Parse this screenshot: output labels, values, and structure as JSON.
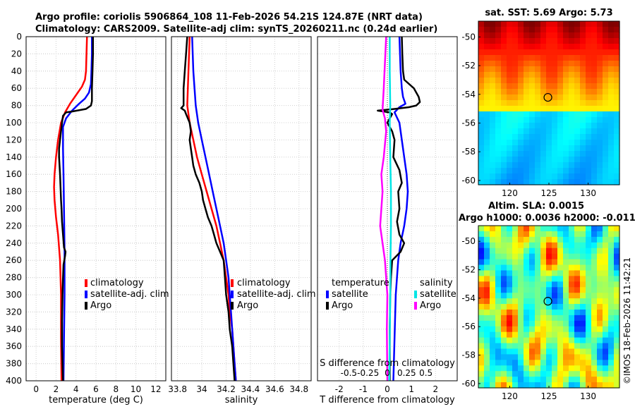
{
  "header": {
    "title_line1": "Argo profile: coriolis 5906864_108 11-Feb-2026 54.21S 124.87E (NRT data)",
    "title_line2": "Climatology: CARS2009. Satellite-adj clim: synTS_20260211.nc (0.24d earlier)"
  },
  "footer": {
    "credit": "©IMOS 18-Feb-2026 11:42:21"
  },
  "colors": {
    "climatology": "#ff0000",
    "satellite": "#0000ff",
    "argo": "#000000",
    "sal_satellite": "#00e5e5",
    "sal_argo": "#ff00ff"
  },
  "chart_data": [
    {
      "type": "line",
      "name": "temperature-profile",
      "xlabel": "temperature (deg C)",
      "ylabel": "",
      "xlim": [
        -1,
        13
      ],
      "ylim": [
        0,
        400
      ],
      "y_reversed": true,
      "xticks": [
        0,
        2,
        4,
        6,
        8,
        10,
        12
      ],
      "yticks": [
        0,
        20,
        40,
        60,
        80,
        100,
        120,
        140,
        160,
        180,
        200,
        220,
        240,
        260,
        280,
        300,
        320,
        340,
        360,
        380,
        400
      ],
      "grid": true,
      "legend": [
        "climatology",
        "satellite-adj. clim",
        "Argo"
      ],
      "series": [
        {
          "name": "climatology",
          "color": "#ff0000",
          "points": [
            [
              5.1,
              0
            ],
            [
              5.05,
              20
            ],
            [
              5.0,
              40
            ],
            [
              4.9,
              50
            ],
            [
              4.6,
              58
            ],
            [
              4.0,
              68
            ],
            [
              3.4,
              78
            ],
            [
              2.9,
              88
            ],
            [
              2.5,
              100
            ],
            [
              2.2,
              120
            ],
            [
              2.0,
              140
            ],
            [
              1.85,
              160
            ],
            [
              1.8,
              175
            ],
            [
              1.85,
              190
            ],
            [
              2.0,
              210
            ],
            [
              2.2,
              230
            ],
            [
              2.4,
              260
            ],
            [
              2.5,
              300
            ],
            [
              2.5,
              350
            ],
            [
              2.55,
              400
            ]
          ]
        },
        {
          "name": "satellite-adj. clim",
          "color": "#0000ff",
          "points": [
            [
              5.6,
              0
            ],
            [
              5.6,
              20
            ],
            [
              5.55,
              40
            ],
            [
              5.5,
              55
            ],
            [
              5.3,
              65
            ],
            [
              4.9,
              72
            ],
            [
              4.3,
              78
            ],
            [
              3.6,
              86
            ],
            [
              3.0,
              95
            ],
            [
              2.7,
              105
            ],
            [
              2.7,
              130
            ],
            [
              2.75,
              160
            ],
            [
              2.8,
              200
            ],
            [
              2.85,
              250
            ],
            [
              2.85,
              300
            ],
            [
              2.8,
              350
            ],
            [
              2.75,
              400
            ]
          ]
        },
        {
          "name": "Argo",
          "color": "#000000",
          "points": [
            [
              5.7,
              0
            ],
            [
              5.7,
              20
            ],
            [
              5.65,
              40
            ],
            [
              5.6,
              60
            ],
            [
              5.6,
              75
            ],
            [
              5.5,
              80
            ],
            [
              5.0,
              84
            ],
            [
              3.6,
              87
            ],
            [
              3.0,
              88
            ],
            [
              2.7,
              92
            ],
            [
              2.6,
              100
            ],
            [
              2.5,
              110
            ],
            [
              2.4,
              120
            ],
            [
              2.3,
              130
            ],
            [
              2.3,
              140
            ],
            [
              2.35,
              150
            ],
            [
              2.4,
              160
            ],
            [
              2.45,
              175
            ],
            [
              2.5,
              190
            ],
            [
              2.55,
              200
            ],
            [
              2.6,
              215
            ],
            [
              2.7,
              230
            ],
            [
              2.8,
              245
            ],
            [
              2.95,
              250
            ],
            [
              2.9,
              255
            ],
            [
              2.75,
              265
            ],
            [
              2.7,
              280
            ],
            [
              2.65,
              300
            ],
            [
              2.6,
              330
            ],
            [
              2.6,
              360
            ],
            [
              2.65,
              380
            ],
            [
              2.7,
              400
            ]
          ]
        }
      ]
    },
    {
      "type": "line",
      "name": "salinity-profile",
      "xlabel": "salinity",
      "ylabel": "",
      "xlim": [
        33.75,
        34.9
      ],
      "ylim": [
        0,
        400
      ],
      "y_reversed": true,
      "xticks": [
        33.8,
        34,
        34.2,
        34.4,
        34.6,
        34.8
      ],
      "xtick_labels": [
        "33.8",
        "34",
        "34.2",
        "34.4",
        "34.6",
        "34.8"
      ],
      "grid": true,
      "legend": [
        "climatology",
        "satellite-adj. clim",
        "Argo"
      ],
      "series": [
        {
          "name": "climatology",
          "color": "#ff0000",
          "points": [
            [
              33.9,
              0
            ],
            [
              33.89,
              40
            ],
            [
              33.88,
              80
            ],
            [
              33.9,
              100
            ],
            [
              33.93,
              120
            ],
            [
              33.96,
              140
            ],
            [
              34.0,
              160
            ],
            [
              34.04,
              180
            ],
            [
              34.08,
              200
            ],
            [
              34.12,
              220
            ],
            [
              34.15,
              240
            ],
            [
              34.18,
              260
            ],
            [
              34.2,
              280
            ],
            [
              34.22,
              300
            ],
            [
              34.23,
              320
            ],
            [
              34.25,
              340
            ],
            [
              34.26,
              360
            ],
            [
              34.27,
              380
            ],
            [
              34.28,
              400
            ]
          ]
        },
        {
          "name": "satellite-adj. clim",
          "color": "#0000ff",
          "points": [
            [
              33.92,
              0
            ],
            [
              33.93,
              40
            ],
            [
              33.95,
              80
            ],
            [
              33.97,
              100
            ],
            [
              34.0,
              120
            ],
            [
              34.03,
              140
            ],
            [
              34.06,
              160
            ],
            [
              34.09,
              180
            ],
            [
              34.12,
              200
            ],
            [
              34.15,
              220
            ],
            [
              34.18,
              240
            ],
            [
              34.2,
              260
            ],
            [
              34.22,
              280
            ],
            [
              34.23,
              300
            ],
            [
              34.24,
              320
            ],
            [
              34.25,
              340
            ],
            [
              34.26,
              360
            ],
            [
              34.27,
              380
            ],
            [
              34.28,
              400
            ]
          ]
        },
        {
          "name": "Argo",
          "color": "#000000",
          "points": [
            [
              33.88,
              0
            ],
            [
              33.87,
              20
            ],
            [
              33.86,
              40
            ],
            [
              33.85,
              60
            ],
            [
              33.85,
              80
            ],
            [
              33.83,
              83
            ],
            [
              33.86,
              86
            ],
            [
              33.87,
              90
            ],
            [
              33.9,
              100
            ],
            [
              33.91,
              110
            ],
            [
              33.9,
              120
            ],
            [
              33.91,
              130
            ],
            [
              33.92,
              140
            ],
            [
              33.93,
              150
            ],
            [
              33.95,
              160
            ],
            [
              33.98,
              170
            ],
            [
              34.0,
              180
            ],
            [
              34.01,
              190
            ],
            [
              34.03,
              200
            ],
            [
              34.05,
              210
            ],
            [
              34.08,
              220
            ],
            [
              34.1,
              230
            ],
            [
              34.12,
              240
            ],
            [
              34.15,
              250
            ],
            [
              34.18,
              260
            ],
            [
              34.19,
              280
            ],
            [
              34.2,
              300
            ],
            [
              34.22,
              320
            ],
            [
              34.23,
              340
            ],
            [
              34.25,
              360
            ],
            [
              34.26,
              380
            ],
            [
              34.27,
              400
            ]
          ]
        }
      ]
    },
    {
      "type": "line",
      "name": "difference-profile",
      "xlabel": "T difference from climatology",
      "x2label": "S difference from climatology",
      "xlim": [
        -2.9,
        2.9
      ],
      "ylim": [
        0,
        400
      ],
      "y_reversed": true,
      "xticks": [
        -2,
        -1,
        0,
        1,
        2
      ],
      "xtick_labels": [
        "-2",
        "-1",
        "0",
        "1",
        "2"
      ],
      "x2ticks": [
        -1.6,
        -0.8,
        0,
        0.8,
        1.6
      ],
      "x2tick_labels": [
        "-0.5",
        "-0.25",
        "0",
        "0.25",
        "0.5"
      ],
      "grid": true,
      "legend_temperature_title": "temperature",
      "legend_salinity_title": "salinity",
      "legend_satellite": "satellite",
      "legend_argo": "Argo",
      "series": [
        {
          "name": "temperature satellite",
          "color": "#0000ff",
          "points": [
            [
              0.5,
              0
            ],
            [
              0.55,
              40
            ],
            [
              0.6,
              60
            ],
            [
              0.65,
              70
            ],
            [
              0.75,
              78
            ],
            [
              0.5,
              82
            ],
            [
              0.3,
              88
            ],
            [
              0.5,
              100
            ],
            [
              0.6,
              120
            ],
            [
              0.7,
              140
            ],
            [
              0.8,
              160
            ],
            [
              0.85,
              180
            ],
            [
              0.8,
              200
            ],
            [
              0.7,
              220
            ],
            [
              0.55,
              240
            ],
            [
              0.45,
              260
            ],
            [
              0.35,
              300
            ],
            [
              0.3,
              350
            ],
            [
              0.25,
              400
            ]
          ]
        },
        {
          "name": "temperature Argo",
          "color": "#000000",
          "points": [
            [
              0.6,
              0
            ],
            [
              0.62,
              20
            ],
            [
              0.65,
              40
            ],
            [
              0.7,
              50
            ],
            [
              1.1,
              60
            ],
            [
              1.3,
              70
            ],
            [
              1.35,
              76
            ],
            [
              1.2,
              80
            ],
            [
              0.9,
              82
            ],
            [
              0.3,
              84
            ],
            [
              -0.4,
              86
            ],
            [
              0.1,
              88
            ],
            [
              0.2,
              90
            ],
            [
              0.0,
              100
            ],
            [
              0.2,
              110
            ],
            [
              0.3,
              120
            ],
            [
              0.25,
              140
            ],
            [
              0.5,
              155
            ],
            [
              0.6,
              170
            ],
            [
              0.45,
              180
            ],
            [
              0.5,
              200
            ],
            [
              0.4,
              215
            ],
            [
              0.5,
              230
            ],
            [
              0.7,
              240
            ],
            [
              0.55,
              250
            ],
            [
              0.2,
              260
            ],
            [
              0.15,
              280
            ],
            [
              0.12,
              300
            ],
            [
              0.1,
              340
            ],
            [
              0.1,
              400
            ]
          ]
        },
        {
          "name": "salinity satellite",
          "color": "#00e5e5",
          "points": [
            [
              0.1,
              0
            ],
            [
              0.1,
              40
            ],
            [
              0.12,
              80
            ],
            [
              0.1,
              100
            ],
            [
              0.12,
              140
            ],
            [
              0.15,
              180
            ],
            [
              0.15,
              220
            ],
            [
              0.13,
              260
            ],
            [
              0.12,
              300
            ],
            [
              0.1,
              350
            ],
            [
              0.08,
              400
            ]
          ]
        },
        {
          "name": "salinity Argo",
          "color": "#ff00ff",
          "points": [
            [
              -0.05,
              0
            ],
            [
              -0.1,
              30
            ],
            [
              -0.15,
              60
            ],
            [
              -0.2,
              85
            ],
            [
              -0.1,
              95
            ],
            [
              -0.05,
              110
            ],
            [
              -0.15,
              140
            ],
            [
              -0.25,
              160
            ],
            [
              -0.2,
              180
            ],
            [
              -0.25,
              200
            ],
            [
              -0.3,
              220
            ],
            [
              -0.2,
              240
            ],
            [
              -0.1,
              260
            ],
            [
              -0.05,
              280
            ],
            [
              0.0,
              300
            ],
            [
              -0.02,
              340
            ],
            [
              0.0,
              400
            ]
          ]
        }
      ]
    },
    {
      "type": "heatmap",
      "name": "sst-map",
      "title": "sat. SST: 5.69 Argo: 5.73",
      "xticks": [
        120,
        125,
        130
      ],
      "xtick_labels": [
        "120",
        "125",
        "130"
      ],
      "yticks": [
        -50,
        -52,
        -54,
        -56,
        -58,
        -60
      ],
      "ytick_labels": [
        "-50",
        "-52",
        "-54",
        "-56",
        "-58",
        "-60"
      ],
      "xlim": [
        116,
        134
      ],
      "ylim": [
        -60.3,
        -48.9
      ],
      "marker": [
        124.87,
        -54.21
      ]
    },
    {
      "type": "heatmap",
      "name": "sla-map",
      "title_line1": "Altim. SLA: 0.0015",
      "title_line2": "Argo h1000: 0.0036 h2000: -0.011",
      "xticks": [
        120,
        125,
        130
      ],
      "xtick_labels": [
        "120",
        "125",
        "130"
      ],
      "yticks": [
        -50,
        -52,
        -54,
        -56,
        -58,
        -60
      ],
      "ytick_labels": [
        "-50",
        "-52",
        "-54",
        "-56",
        "-58",
        "-60"
      ],
      "xlim": [
        116,
        134
      ],
      "ylim": [
        -60.3,
        -48.9
      ],
      "marker": [
        124.87,
        -54.21
      ]
    }
  ]
}
